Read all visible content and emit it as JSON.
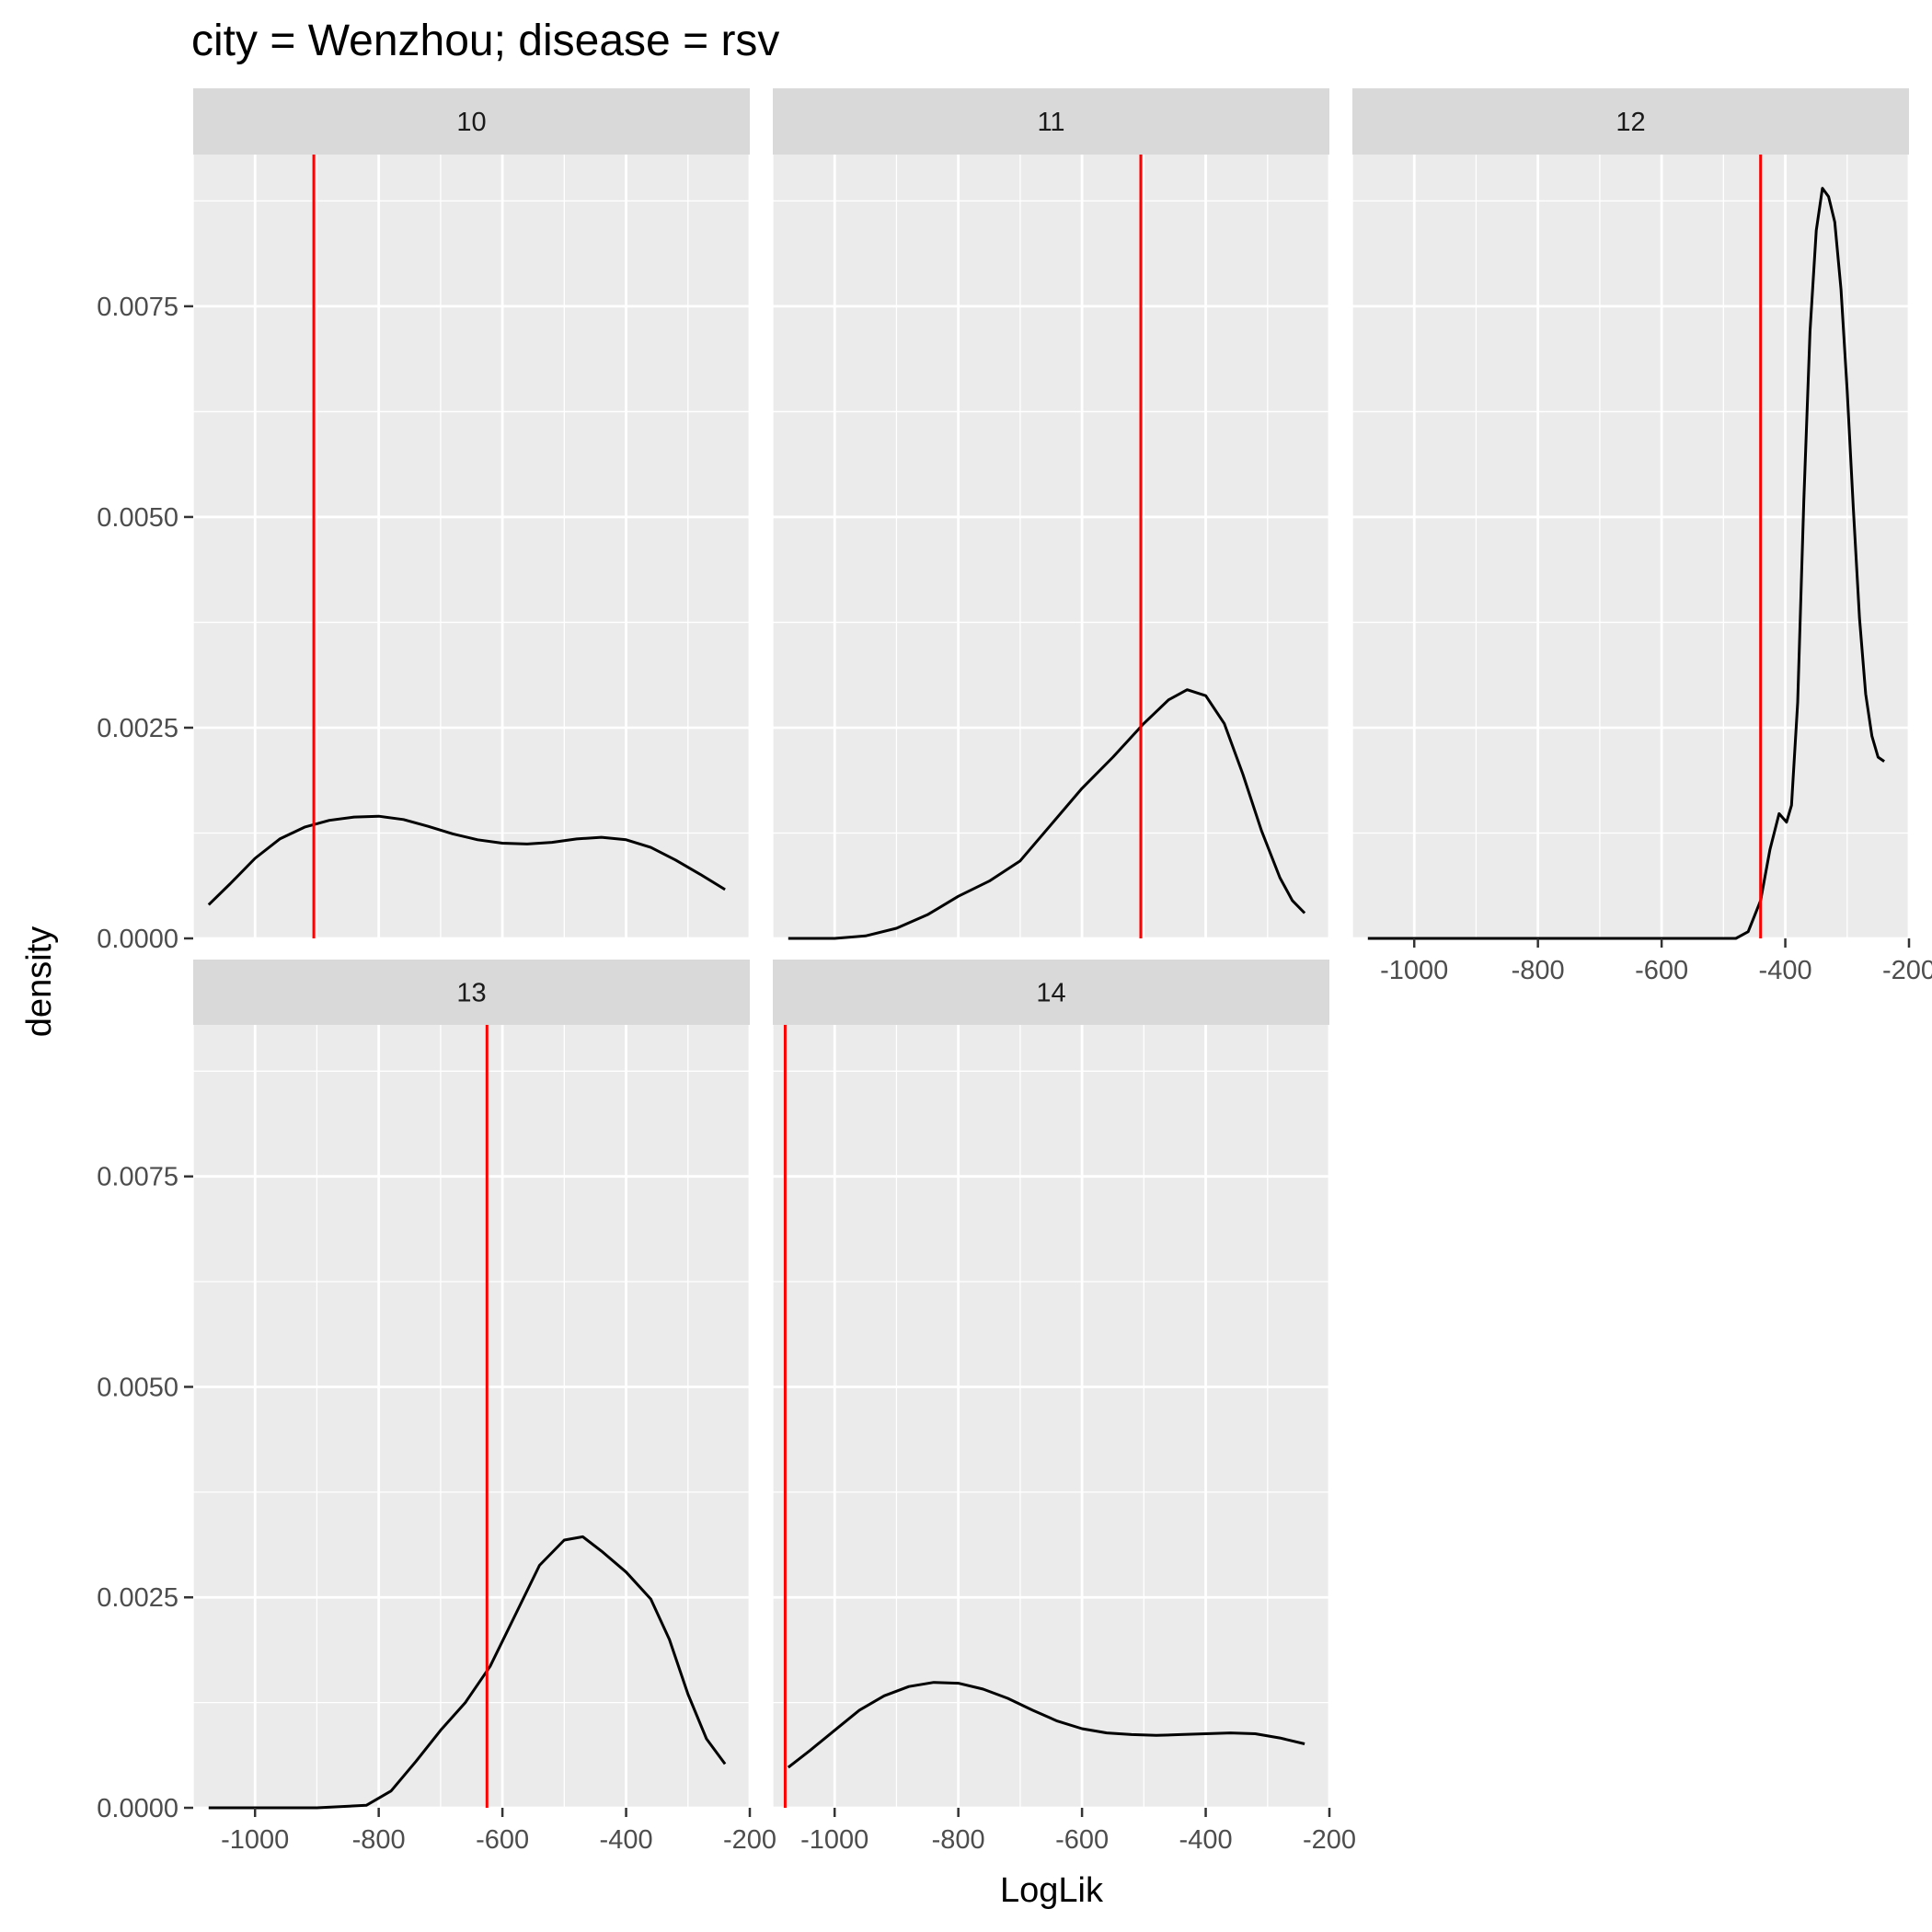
{
  "chart_data": {
    "type": "line",
    "title": "city = Wenzhou; disease = rsv",
    "xlabel": "LogLik",
    "ylabel": "density",
    "xlim": [
      -1100,
      -200
    ],
    "ylim": [
      0,
      0.0093
    ],
    "x_ticks": [
      -1000,
      -800,
      -600,
      -400,
      -200
    ],
    "x_tick_labels": [
      "-1000",
      "-800",
      "-600",
      "-400",
      "-200"
    ],
    "y_ticks": [
      0,
      0.0025,
      0.005,
      0.0075
    ],
    "y_tick_labels": [
      "0.0000",
      "0.0025",
      "0.0050",
      "0.0075"
    ],
    "grid": true,
    "reference_line_color": "#ff0000",
    "curve_color": "#000000",
    "panel_background": "#ebebeb",
    "strip_background": "#d9d9d9",
    "panels": [
      {
        "label": "10",
        "reference_x": -905,
        "points": [
          [
            -1075,
            0.0004
          ],
          [
            -1040,
            0.00065
          ],
          [
            -1000,
            0.00095
          ],
          [
            -960,
            0.00118
          ],
          [
            -920,
            0.00132
          ],
          [
            -880,
            0.0014
          ],
          [
            -840,
            0.00144
          ],
          [
            -800,
            0.00145
          ],
          [
            -760,
            0.00141
          ],
          [
            -720,
            0.00133
          ],
          [
            -680,
            0.00124
          ],
          [
            -640,
            0.00117
          ],
          [
            -600,
            0.00113
          ],
          [
            -560,
            0.00112
          ],
          [
            -520,
            0.00114
          ],
          [
            -480,
            0.00118
          ],
          [
            -440,
            0.0012
          ],
          [
            -400,
            0.00117
          ],
          [
            -360,
            0.00108
          ],
          [
            -320,
            0.00093
          ],
          [
            -280,
            0.00076
          ],
          [
            -240,
            0.00058
          ]
        ]
      },
      {
        "label": "11",
        "reference_x": -505,
        "points": [
          [
            -1075,
            0.0
          ],
          [
            -1000,
            0.0
          ],
          [
            -950,
            3e-05
          ],
          [
            -900,
            0.00012
          ],
          [
            -850,
            0.00028
          ],
          [
            -800,
            0.0005
          ],
          [
            -750,
            0.00068
          ],
          [
            -700,
            0.00092
          ],
          [
            -650,
            0.00135
          ],
          [
            -600,
            0.00178
          ],
          [
            -550,
            0.00215
          ],
          [
            -500,
            0.00255
          ],
          [
            -460,
            0.00283
          ],
          [
            -430,
            0.00295
          ],
          [
            -400,
            0.00288
          ],
          [
            -370,
            0.00255
          ],
          [
            -340,
            0.00195
          ],
          [
            -310,
            0.00128
          ],
          [
            -280,
            0.00072
          ],
          [
            -260,
            0.00045
          ],
          [
            -240,
            0.0003
          ]
        ]
      },
      {
        "label": "12",
        "reference_x": -440,
        "points": [
          [
            -1075,
            0.0
          ],
          [
            -600,
            0.0
          ],
          [
            -480,
            0.0
          ],
          [
            -460,
            8e-05
          ],
          [
            -440,
            0.00045
          ],
          [
            -425,
            0.00105
          ],
          [
            -410,
            0.00148
          ],
          [
            -398,
            0.00138
          ],
          [
            -390,
            0.00158
          ],
          [
            -380,
            0.0028
          ],
          [
            -370,
            0.0052
          ],
          [
            -360,
            0.0072
          ],
          [
            -350,
            0.0084
          ],
          [
            -340,
            0.0089
          ],
          [
            -330,
            0.0088
          ],
          [
            -320,
            0.0085
          ],
          [
            -310,
            0.0077
          ],
          [
            -300,
            0.0065
          ],
          [
            -290,
            0.0051
          ],
          [
            -280,
            0.0038
          ],
          [
            -270,
            0.0029
          ],
          [
            -260,
            0.0024
          ],
          [
            -250,
            0.00215
          ],
          [
            -240,
            0.0021
          ]
        ]
      },
      {
        "label": "13",
        "reference_x": -625,
        "points": [
          [
            -1075,
            0.0
          ],
          [
            -900,
            0.0
          ],
          [
            -820,
            3e-05
          ],
          [
            -780,
            0.0002
          ],
          [
            -740,
            0.00055
          ],
          [
            -700,
            0.00092
          ],
          [
            -660,
            0.00125
          ],
          [
            -620,
            0.00168
          ],
          [
            -580,
            0.00228
          ],
          [
            -540,
            0.00288
          ],
          [
            -500,
            0.00318
          ],
          [
            -470,
            0.00322
          ],
          [
            -440,
            0.00305
          ],
          [
            -400,
            0.0028
          ],
          [
            -360,
            0.00248
          ],
          [
            -330,
            0.002
          ],
          [
            -300,
            0.00135
          ],
          [
            -270,
            0.00082
          ],
          [
            -240,
            0.00052
          ]
        ]
      },
      {
        "label": "14",
        "reference_x": -1080,
        "points": [
          [
            -1075,
            0.00048
          ],
          [
            -1040,
            0.00068
          ],
          [
            -1000,
            0.00092
          ],
          [
            -960,
            0.00116
          ],
          [
            -920,
            0.00133
          ],
          [
            -880,
            0.00144
          ],
          [
            -840,
            0.00149
          ],
          [
            -800,
            0.00148
          ],
          [
            -760,
            0.00141
          ],
          [
            -720,
            0.0013
          ],
          [
            -680,
            0.00116
          ],
          [
            -640,
            0.00103
          ],
          [
            -600,
            0.00094
          ],
          [
            -560,
            0.00089
          ],
          [
            -520,
            0.00087
          ],
          [
            -480,
            0.00086
          ],
          [
            -440,
            0.00087
          ],
          [
            -400,
            0.00088
          ],
          [
            -360,
            0.00089
          ],
          [
            -320,
            0.00088
          ],
          [
            -280,
            0.00083
          ],
          [
            -240,
            0.00076
          ]
        ]
      }
    ]
  }
}
